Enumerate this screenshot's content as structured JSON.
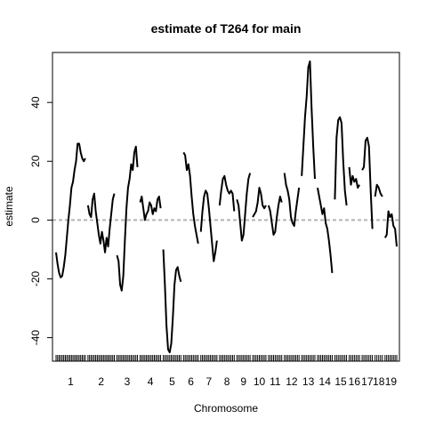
{
  "chart_data": {
    "type": "line",
    "title": "estimate of T264 for main",
    "xlabel": "Chromosome",
    "ylabel": "estimate",
    "ylim": [
      -48,
      57
    ],
    "yticks": [
      -40,
      -20,
      0,
      20,
      40
    ],
    "reference_line": {
      "y": 0,
      "style": "dashed",
      "color": "#b3b3b3"
    },
    "line_color": "#000000",
    "rug": true,
    "chromosomes": [
      {
        "label": "1",
        "values": [
          -11,
          -15,
          -18,
          -19.5,
          -19,
          -16,
          -12,
          -6,
          0,
          5,
          11,
          13,
          17,
          20,
          26,
          26,
          23,
          21,
          20,
          21
        ]
      },
      {
        "label": "2",
        "values": [
          5,
          2,
          1,
          7,
          9,
          3,
          -1,
          -5,
          -8,
          -4,
          -7,
          -11,
          -6,
          -9,
          -3,
          2,
          7,
          9
        ]
      },
      {
        "label": "3",
        "values": [
          -12,
          -14,
          -22,
          -24,
          -19,
          -7,
          4,
          11,
          14,
          19,
          17,
          23,
          25,
          18
        ]
      },
      {
        "label": "4",
        "values": [
          6,
          8,
          4,
          0,
          2,
          3,
          6,
          5,
          2,
          4,
          3,
          7,
          8,
          4
        ]
      },
      {
        "label": "5",
        "values": [
          -10,
          -22,
          -36,
          -44,
          -45,
          -42,
          -33,
          -22,
          -17,
          -16,
          -19,
          -21
        ]
      },
      {
        "label": "6",
        "values": [
          23,
          22,
          17,
          19,
          15,
          8,
          2,
          -2,
          -5,
          -8
        ]
      },
      {
        "label": "7",
        "values": [
          -4,
          3,
          8,
          10,
          9,
          4,
          -2,
          -8,
          -14,
          -11,
          -7
        ]
      },
      {
        "label": "8",
        "values": [
          5,
          10,
          14,
          15,
          12,
          10,
          9,
          10,
          9,
          3
        ]
      },
      {
        "label": "9",
        "values": [
          7,
          5,
          -1,
          -7,
          -5,
          2,
          9,
          14,
          16
        ]
      },
      {
        "label": "10",
        "values": [
          1,
          2,
          3,
          6,
          11,
          9,
          5,
          4,
          5
        ]
      },
      {
        "label": "11",
        "values": [
          5,
          3,
          -1,
          -5,
          -4,
          1,
          5,
          8,
          6
        ]
      },
      {
        "label": "12",
        "values": [
          16,
          12,
          10,
          7,
          1,
          -1,
          -2,
          3,
          7,
          11
        ]
      },
      {
        "label": "13",
        "values": [
          15,
          25,
          35,
          42,
          52,
          54,
          38,
          25,
          14
        ]
      },
      {
        "label": "14",
        "values": [
          11,
          8,
          5,
          2,
          4,
          -1,
          -3,
          -7,
          -12,
          -18
        ]
      },
      {
        "label": "15",
        "values": [
          7,
          28,
          34,
          35,
          33,
          20,
          10,
          5
        ]
      },
      {
        "label": "16",
        "values": [
          18,
          12,
          15,
          13,
          14,
          11,
          12
        ]
      },
      {
        "label": "17",
        "values": [
          17,
          18,
          27,
          28,
          25,
          10,
          -3
        ]
      },
      {
        "label": "18",
        "values": [
          8,
          12,
          11,
          9,
          8
        ]
      },
      {
        "label": "19",
        "values": [
          -6,
          -5,
          3,
          1,
          2,
          -2,
          -3,
          -9
        ]
      }
    ]
  }
}
